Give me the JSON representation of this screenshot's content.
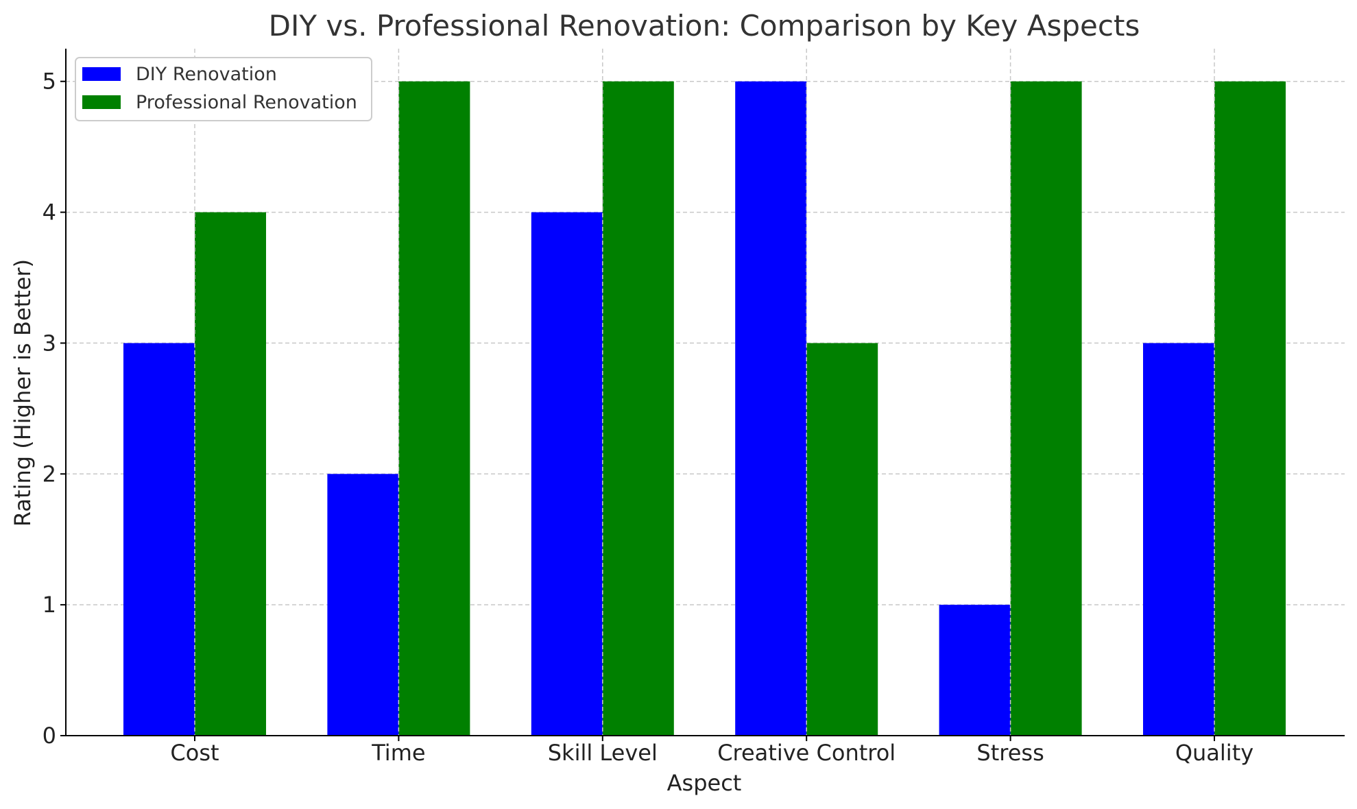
{
  "chart_data": {
    "type": "bar",
    "title": "DIY vs. Professional Renovation: Comparison by Key Aspects",
    "xlabel": "Aspect",
    "ylabel": "Rating (Higher is Better)",
    "categories": [
      "Cost",
      "Time",
      "Skill Level",
      "Creative Control",
      "Stress",
      "Quality"
    ],
    "series": [
      {
        "name": "DIY Renovation",
        "values": [
          3,
          2,
          4,
          5,
          1,
          3
        ],
        "color": "#0000ff"
      },
      {
        "name": "Professional Renovation",
        "values": [
          4,
          5,
          5,
          3,
          5,
          5
        ],
        "color": "#008000"
      }
    ],
    "ylim": [
      0,
      5.25
    ],
    "yticks": [
      0,
      1,
      2,
      3,
      4,
      5
    ],
    "grid": true,
    "legend_position": "top-left"
  }
}
